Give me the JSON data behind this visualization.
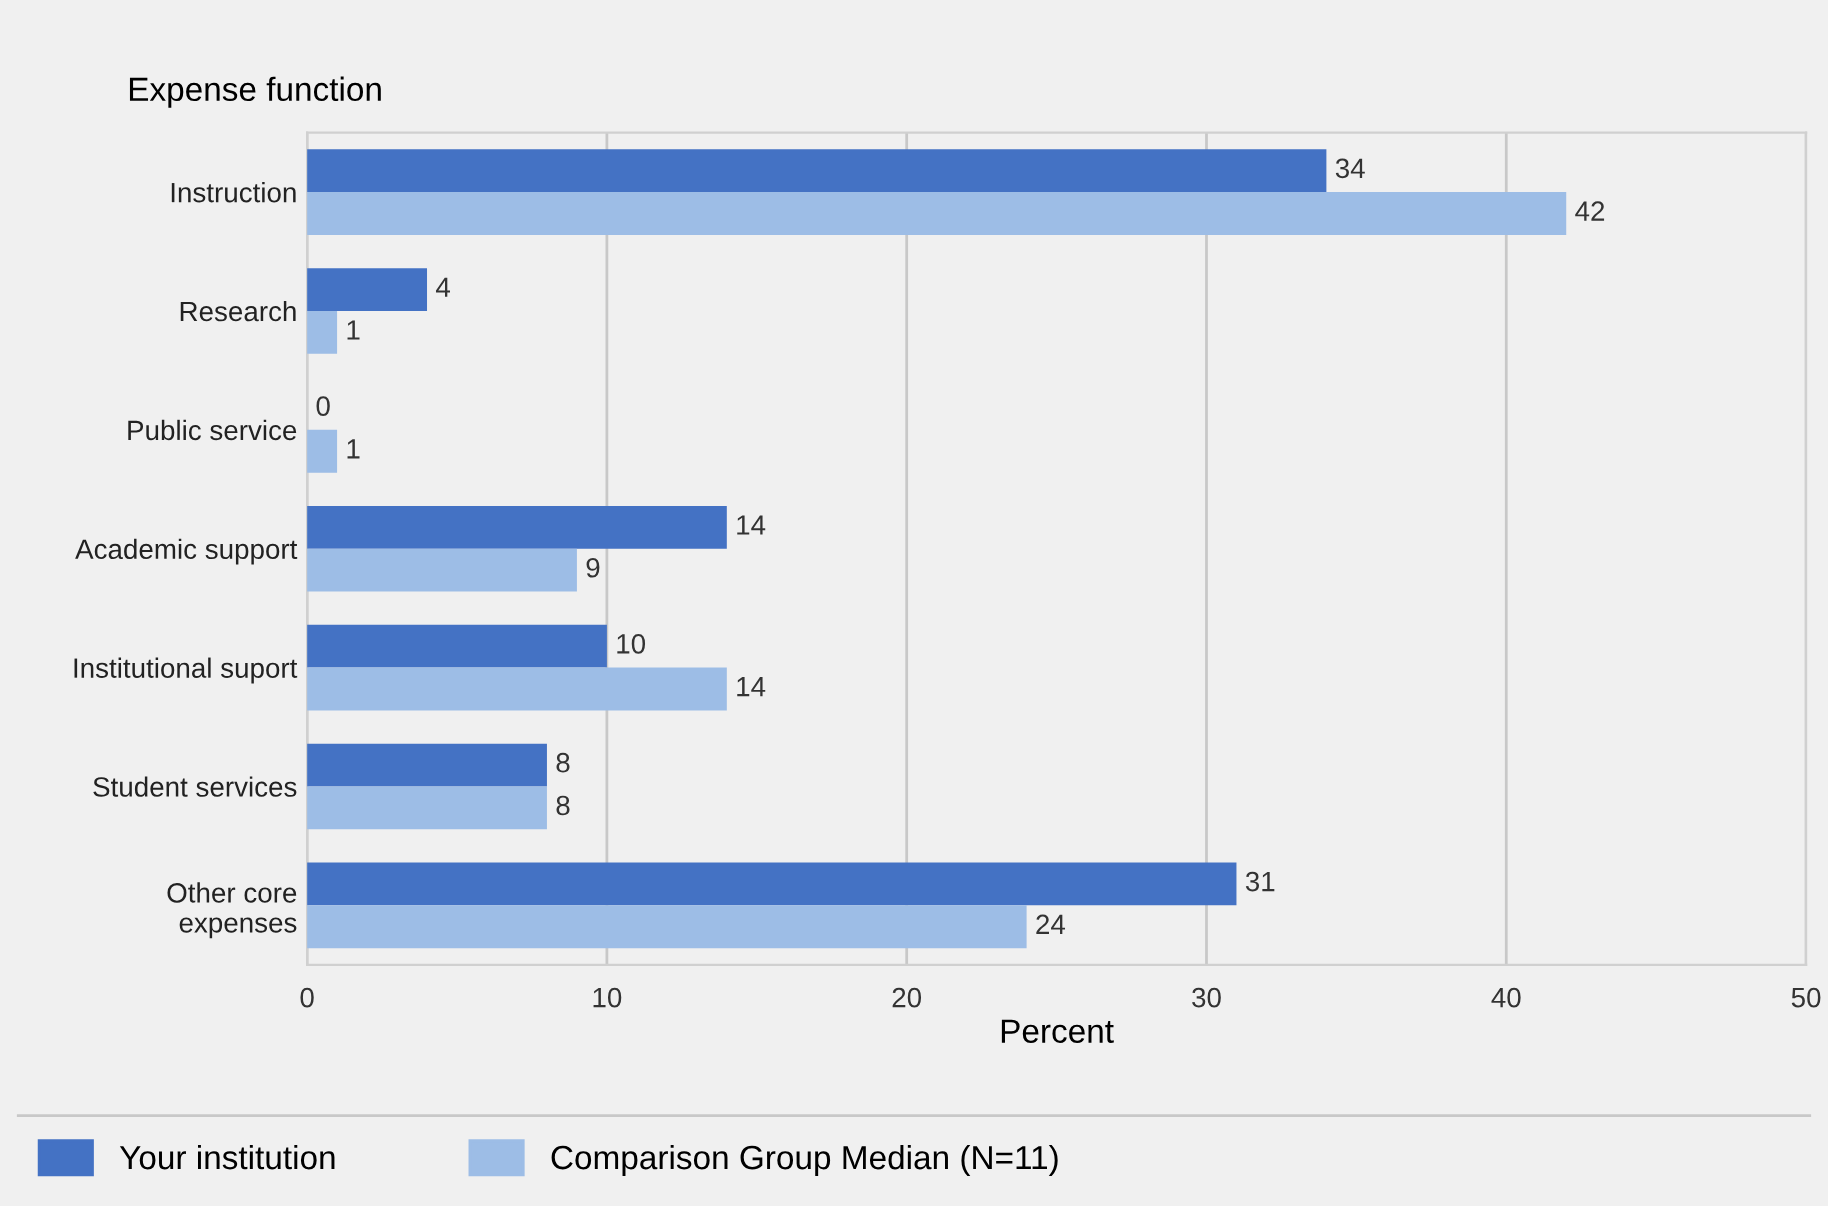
{
  "chart_data": {
    "type": "bar",
    "orientation": "horizontal",
    "ylabel": "Expense function",
    "xlabel": "Percent",
    "categories": [
      "Instruction",
      "Research",
      "Public service",
      "Academic support",
      "Institutional suport",
      "Student services",
      "Other core\nexpenses"
    ],
    "series": [
      {
        "name": "Your institution",
        "color": "#4472c4",
        "values": [
          34,
          4,
          0,
          14,
          10,
          8,
          31
        ]
      },
      {
        "name": "Comparison Group Median (N=11)",
        "color": "#9dbde6",
        "values": [
          42,
          1,
          1,
          9,
          14,
          8,
          24
        ]
      }
    ],
    "xlim": [
      0,
      50
    ],
    "xticks": [
      0,
      10,
      20,
      30,
      40,
      50
    ],
    "grid": "x",
    "legend": "bottom",
    "data_labels": true
  }
}
